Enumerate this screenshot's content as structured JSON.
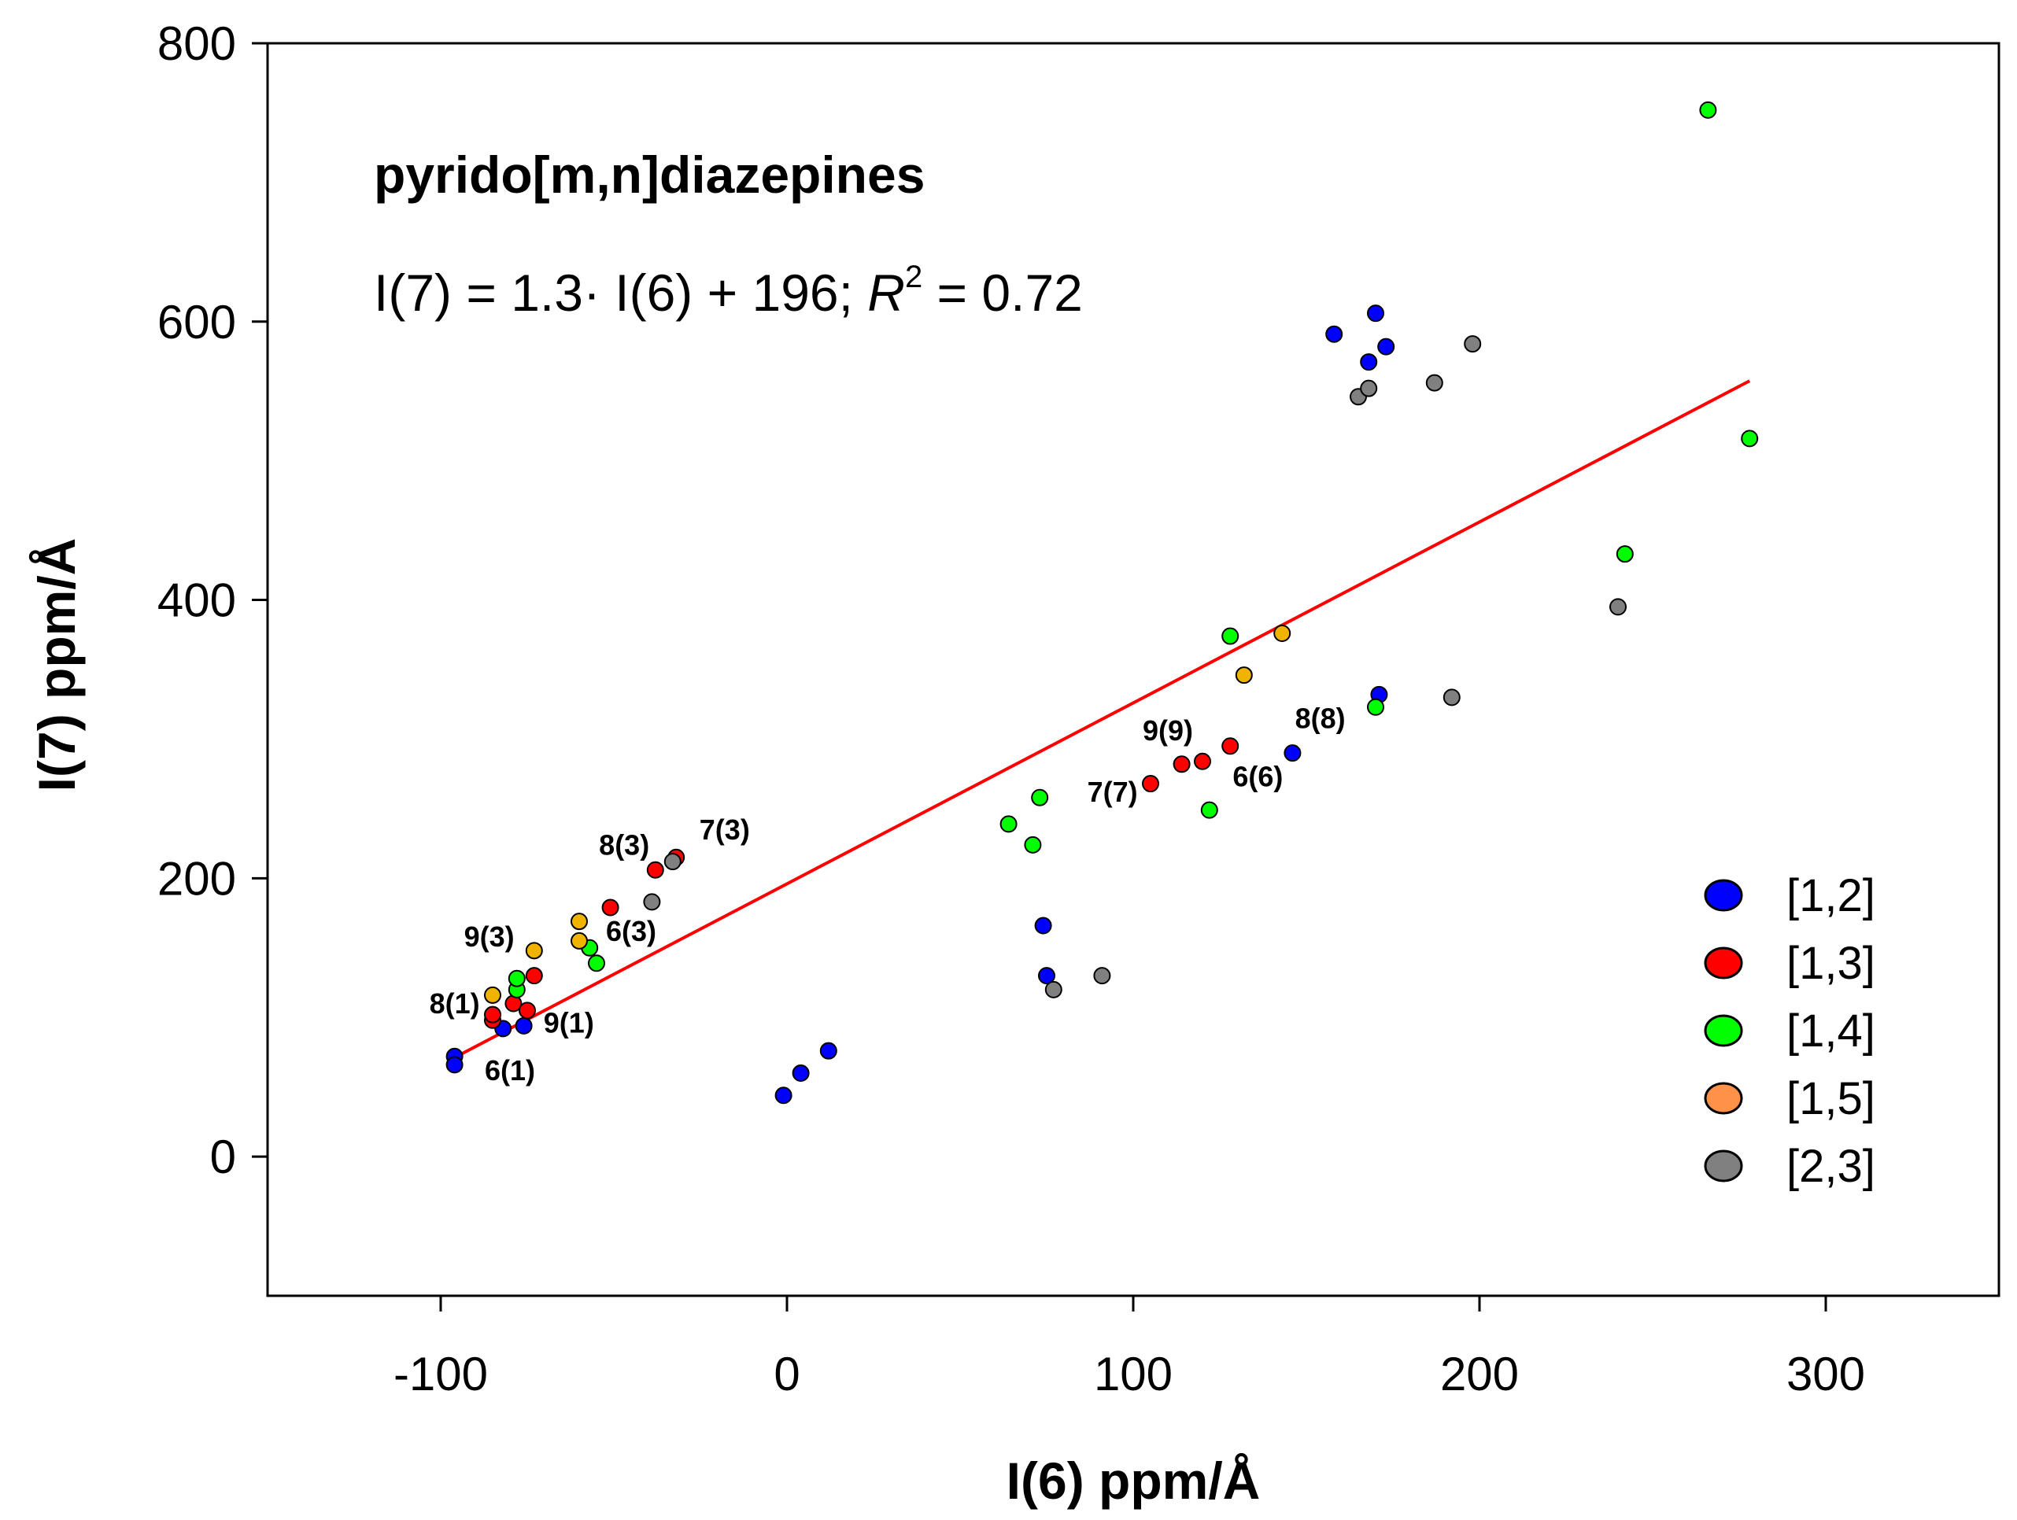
{
  "chart_data": {
    "type": "scatter",
    "title": "pyrido[m,n]diazepines",
    "equation": {
      "prefix": "I(7) = 1.3· I(6) + 196; ",
      "r": "R",
      "sup": "2",
      "suffix": " = 0.72"
    },
    "xlabel": "I(6) ppm/Å",
    "ylabel": "I(7) ppm/Å",
    "xlim": [
      -150,
      350
    ],
    "ylim": [
      -100,
      800
    ],
    "xticks": [
      -100,
      0,
      100,
      200,
      300
    ],
    "yticks": [
      0,
      200,
      400,
      600,
      800
    ],
    "grid": false,
    "legend_position": "bottom-right",
    "regression": {
      "slope": 1.3,
      "intercept": 196,
      "x_range": [
        -97,
        278
      ],
      "color": "#ff0000"
    },
    "series": [
      {
        "name": "[1,2]",
        "color": "#0000ff",
        "points": [
          [
            -96,
            72
          ],
          [
            -96,
            66
          ],
          [
            -82,
            92
          ],
          [
            -76,
            94
          ],
          [
            -1,
            44
          ],
          [
            4,
            60
          ],
          [
            12,
            76
          ],
          [
            74,
            166
          ],
          [
            75,
            130
          ],
          [
            146,
            290
          ],
          [
            158,
            591
          ],
          [
            168,
            571
          ],
          [
            170,
            606
          ],
          [
            171,
            332
          ],
          [
            173,
            582
          ]
        ]
      },
      {
        "name": "[1,3]",
        "color": "#ff0000",
        "points": [
          [
            -85,
            98
          ],
          [
            -85,
            102
          ],
          [
            -79,
            110
          ],
          [
            -75,
            105
          ],
          [
            -73,
            130
          ],
          [
            -51,
            179
          ],
          [
            -38,
            206
          ],
          [
            -32,
            215
          ],
          [
            105,
            268
          ],
          [
            114,
            282
          ],
          [
            120,
            284
          ],
          [
            128,
            295
          ]
        ]
      },
      {
        "name": "[1,4]",
        "color": "#00ff00",
        "points": [
          [
            -78,
            120
          ],
          [
            -78,
            128
          ],
          [
            -57,
            150
          ],
          [
            -55,
            139
          ],
          [
            64,
            239
          ],
          [
            71,
            224
          ],
          [
            73,
            258
          ],
          [
            122,
            249
          ],
          [
            128,
            374
          ],
          [
            170,
            323
          ],
          [
            242,
            433
          ],
          [
            266,
            752
          ],
          [
            278,
            516
          ]
        ]
      },
      {
        "name": "[1,5]",
        "color": "#ff9149",
        "marker_color": "#f0b400",
        "points": [
          [
            -85,
            116
          ],
          [
            -73,
            148
          ],
          [
            -60,
            155
          ],
          [
            -60,
            169
          ],
          [
            132,
            346
          ],
          [
            143,
            376
          ]
        ]
      },
      {
        "name": "[2,3]",
        "color": "#808080",
        "points": [
          [
            -39,
            183
          ],
          [
            -33,
            212
          ],
          [
            77,
            120
          ],
          [
            91,
            130
          ],
          [
            165,
            546
          ],
          [
            168,
            552
          ],
          [
            187,
            556
          ],
          [
            192,
            330
          ],
          [
            198,
            584
          ],
          [
            240,
            395
          ]
        ]
      }
    ],
    "annotations": [
      {
        "text": "8(3)",
        "x": -47,
        "y": 217
      },
      {
        "text": "7(3)",
        "x": -18,
        "y": 228
      },
      {
        "text": "9(3)",
        "x": -86,
        "y": 151
      },
      {
        "text": "6(3)",
        "x": -45,
        "y": 155
      },
      {
        "text": "8(1)",
        "x": -96,
        "y": 103
      },
      {
        "text": "9(1)",
        "x": -63,
        "y": 89
      },
      {
        "text": "6(1)",
        "x": -80,
        "y": 55
      },
      {
        "text": "9(9)",
        "x": 110,
        "y": 299
      },
      {
        "text": "8(8)",
        "x": 154,
        "y": 308
      },
      {
        "text": "7(7)",
        "x": 94,
        "y": 255
      },
      {
        "text": "6(6)",
        "x": 136,
        "y": 266
      }
    ]
  }
}
